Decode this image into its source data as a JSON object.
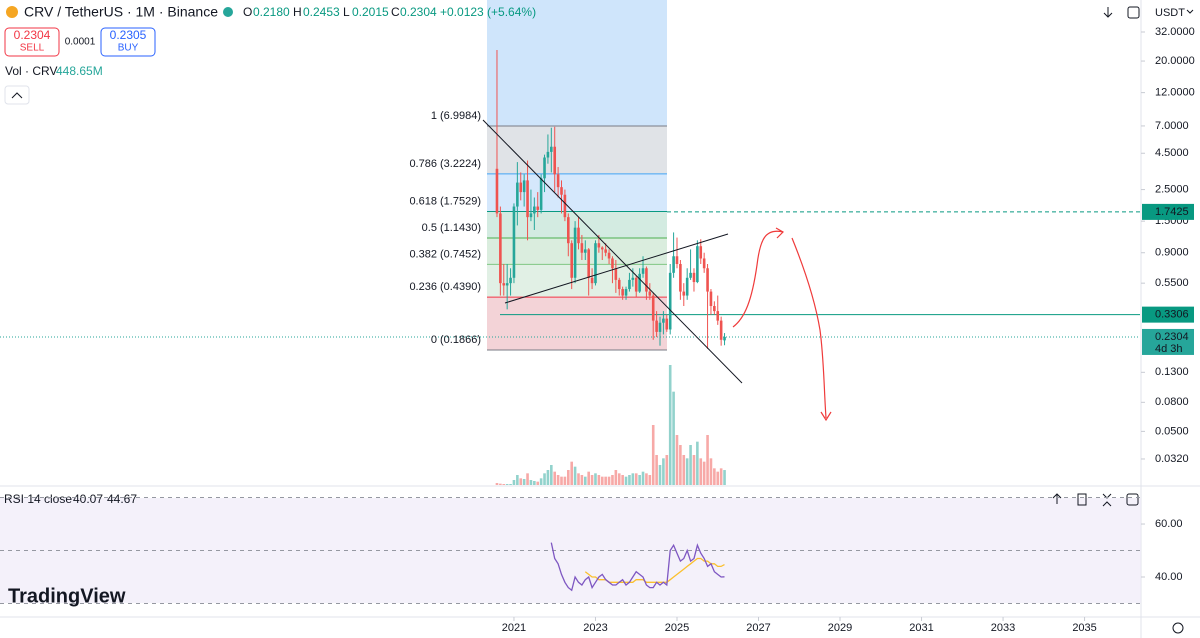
{
  "header": {
    "symbol": "CRV / TetherUS · 1M · Binance",
    "o_label": "O",
    "open": "0.2180",
    "h_label": "H",
    "high": "0.2453",
    "l_label": "L",
    "low": "0.2015",
    "c_label": "C",
    "close": "0.2304",
    "change": "+0.0123 (+5.64%)",
    "sell_price": "0.2304",
    "sell": "SELL",
    "spread": "0.0001",
    "buy_price": "0.2305",
    "buy": "BUY",
    "vol_label": "Vol · CRV",
    "vol_value": "448.65M",
    "currency": "USDT"
  },
  "chart_data": {
    "type": "candlestick",
    "start": "2020-08",
    "log_scale": true,
    "ylim": [
      0.021,
      53.7
    ],
    "yticks": [
      {
        "value": 32,
        "label": "32.0000"
      },
      {
        "value": 20,
        "label": "20.0000"
      },
      {
        "value": 12,
        "label": "12.0000"
      },
      {
        "value": 7,
        "label": "7.0000"
      },
      {
        "value": 4.5,
        "label": "4.5000"
      },
      {
        "value": 2.5,
        "label": "2.5000"
      },
      {
        "value": 1.5,
        "label": "1.5000"
      },
      {
        "value": 0.9,
        "label": "0.9000"
      },
      {
        "value": 0.55,
        "label": "0.5500"
      },
      {
        "value": 0.13,
        "label": "0.1300"
      },
      {
        "value": 0.08,
        "label": "0.0800"
      },
      {
        "value": 0.05,
        "label": "0.0500"
      },
      {
        "value": 0.032,
        "label": "0.0320"
      }
    ],
    "xlim": [
      2008.39,
      2036.36
    ],
    "xticks": [
      2021,
      2023,
      2025,
      2027,
      2029,
      2031,
      2033,
      2035
    ],
    "up_color": "#26a69a",
    "down_color": "#ef5350",
    "candles": [
      [
        3.5,
        23.9,
        1.6,
        1.7
      ],
      [
        1.7,
        1.9,
        0.45,
        0.55
      ],
      [
        0.55,
        0.75,
        0.45,
        0.53
      ],
      [
        0.53,
        0.75,
        0.36,
        0.55
      ],
      [
        0.55,
        0.7,
        0.45,
        0.6
      ],
      [
        0.6,
        2.0,
        0.55,
        1.9
      ],
      [
        1.9,
        3.9,
        1.4,
        2.8
      ],
      [
        2.8,
        3.3,
        2.1,
        2.4
      ],
      [
        2.4,
        3.2,
        1.9,
        2.9
      ],
      [
        2.9,
        4.0,
        1.1,
        1.6
      ],
      [
        1.6,
        2.5,
        1.5,
        1.7
      ],
      [
        1.7,
        2.2,
        1.3,
        1.9
      ],
      [
        1.9,
        2.4,
        1.6,
        1.8
      ],
      [
        1.8,
        3.2,
        1.7,
        3.0
      ],
      [
        3.0,
        4.4,
        2.4,
        4.2
      ],
      [
        4.2,
        6.1,
        3.8,
        4.6
      ],
      [
        4.6,
        6.8,
        3.3,
        5.0
      ],
      [
        5.0,
        6.9,
        2.4,
        3.2
      ],
      [
        3.2,
        3.6,
        2.2,
        2.6
      ],
      [
        2.6,
        2.9,
        1.7,
        2.3
      ],
      [
        2.3,
        2.5,
        1.5,
        1.6
      ],
      [
        1.6,
        1.7,
        0.85,
        1.05
      ],
      [
        1.05,
        1.1,
        0.5,
        0.6
      ],
      [
        0.6,
        1.5,
        0.55,
        1.35
      ],
      [
        1.35,
        1.6,
        0.95,
        1.05
      ],
      [
        1.05,
        1.2,
        0.8,
        0.9
      ],
      [
        0.9,
        1.1,
        0.8,
        0.95
      ],
      [
        0.95,
        0.97,
        0.45,
        0.6
      ],
      [
        0.6,
        0.7,
        0.5,
        0.55
      ],
      [
        0.55,
        1.1,
        0.53,
        1.05
      ],
      [
        1.05,
        1.2,
        0.9,
        0.98
      ],
      [
        0.98,
        1.0,
        0.8,
        0.95
      ],
      [
        0.95,
        1.05,
        0.85,
        0.9
      ],
      [
        0.9,
        0.95,
        0.75,
        0.82
      ],
      [
        0.82,
        0.85,
        0.55,
        0.7
      ],
      [
        0.7,
        0.8,
        0.47,
        0.58
      ],
      [
        0.58,
        0.6,
        0.45,
        0.5
      ],
      [
        0.5,
        0.52,
        0.42,
        0.45
      ],
      [
        0.45,
        0.52,
        0.42,
        0.5
      ],
      [
        0.5,
        0.65,
        0.48,
        0.58
      ],
      [
        0.58,
        0.7,
        0.52,
        0.6
      ],
      [
        0.6,
        0.62,
        0.44,
        0.48
      ],
      [
        0.48,
        0.7,
        0.47,
        0.64
      ],
      [
        0.64,
        0.85,
        0.6,
        0.7
      ],
      [
        0.7,
        0.72,
        0.42,
        0.48
      ],
      [
        0.48,
        0.55,
        0.42,
        0.45
      ],
      [
        0.45,
        0.47,
        0.22,
        0.3
      ],
      [
        0.3,
        0.35,
        0.23,
        0.25
      ],
      [
        0.25,
        0.32,
        0.2,
        0.29
      ],
      [
        0.29,
        0.35,
        0.24,
        0.31
      ],
      [
        0.31,
        0.33,
        0.25,
        0.26
      ],
      [
        0.26,
        0.75,
        0.24,
        0.65
      ],
      [
        0.65,
        1.25,
        0.6,
        0.85
      ],
      [
        0.85,
        1.15,
        0.7,
        0.75
      ],
      [
        0.75,
        0.8,
        0.42,
        0.48
      ],
      [
        0.48,
        0.55,
        0.38,
        0.45
      ],
      [
        0.45,
        0.7,
        0.42,
        0.6
      ],
      [
        0.6,
        0.95,
        0.58,
        0.65
      ],
      [
        0.65,
        0.7,
        0.48,
        0.56
      ],
      [
        0.56,
        1.1,
        0.55,
        1.0
      ],
      [
        1.0,
        1.12,
        0.75,
        0.82
      ],
      [
        0.82,
        0.9,
        0.65,
        0.7
      ],
      [
        0.7,
        0.75,
        0.19,
        0.48
      ],
      [
        0.48,
        0.5,
        0.33,
        0.38
      ],
      [
        0.38,
        0.41,
        0.33,
        0.35
      ],
      [
        0.35,
        0.45,
        0.28,
        0.3
      ],
      [
        0.3,
        0.32,
        0.2,
        0.22
      ],
      [
        0.218,
        0.2453,
        0.2015,
        0.2304
      ]
    ],
    "volume_lim": [
      0,
      14550
    ],
    "volumes": [
      60,
      40,
      30,
      30,
      30,
      150,
      300,
      200,
      180,
      350,
      150,
      120,
      100,
      200,
      350,
      450,
      600,
      400,
      300,
      250,
      250,
      450,
      700,
      550,
      350,
      300,
      250,
      400,
      300,
      350,
      300,
      250,
      250,
      250,
      300,
      450,
      350,
      300,
      250,
      300,
      350,
      350,
      300,
      400,
      350,
      300,
      1800,
      900,
      600,
      800,
      900,
      3600,
      2800,
      1500,
      1200,
      900,
      800,
      1200,
      900,
      1300,
      800,
      700,
      1500,
      800,
      500,
      400,
      500,
      448.65
    ],
    "fib": [
      {
        "label": "1 (6.9984)",
        "price": 6.9984,
        "color": "#787b86",
        "fill": "#e3e3e3"
      },
      {
        "label": "0.786 (3.2224)",
        "price": 3.2224,
        "color": "#42a5f5",
        "fill": "#d6e9fb"
      },
      {
        "label": "0.618 (1.7529)",
        "price": 1.7529,
        "color": "#089981",
        "fill": "#d4ecdc"
      },
      {
        "label": "0.5 (1.1430)",
        "price": 1.143,
        "color": "#4caf50",
        "fill": "#dcefd8"
      },
      {
        "label": "0.382 (0.7452)",
        "price": 0.7452,
        "color": "#81c784",
        "fill": "#e4f2e0"
      },
      {
        "label": "0.236 (0.4390)",
        "price": 0.439,
        "color": "#f23645",
        "fill": "#f9d0d0"
      },
      {
        "label": "0 (0.1866)",
        "price": 0.1866,
        "color": "#787b86",
        "fill": "#f9d0d0"
      }
    ],
    "badges": [
      {
        "value": 1.7425,
        "label": "1.7425",
        "color": "#089981"
      },
      {
        "value": 0.3306,
        "label": "0.3306",
        "color": "#089981"
      },
      {
        "value": 0.2304,
        "label": "0.2304",
        "sub": "4d 3h",
        "color": "#26a69a"
      }
    ]
  },
  "rsi": {
    "label": "RSI 14 close",
    "value": "40.07",
    "ma_value": "44.67",
    "color": "#7e57c2",
    "ma_color": "#fbc02d",
    "ylim": [
      25.66,
      73.6
    ],
    "yticks": [
      {
        "value": 60,
        "label": "60.00"
      },
      {
        "value": 40,
        "label": "40.00"
      }
    ],
    "bands": [
      70,
      50,
      30
    ],
    "values": [
      null,
      null,
      null,
      null,
      null,
      null,
      null,
      null,
      null,
      null,
      null,
      null,
      null,
      null,
      null,
      null,
      53,
      47,
      45,
      41,
      38,
      36,
      35,
      40,
      38,
      37,
      39,
      40,
      36,
      38,
      40,
      41,
      39,
      38,
      37,
      37,
      38,
      39,
      37,
      38,
      40,
      42,
      41,
      40,
      37,
      36,
      36,
      38,
      37,
      38,
      37,
      50,
      52,
      49,
      46,
      47,
      50,
      46,
      47,
      52,
      49,
      47,
      44,
      45,
      42,
      41,
      40,
      40.07
    ],
    "ma": [
      null,
      null,
      null,
      null,
      null,
      null,
      null,
      null,
      null,
      null,
      null,
      null,
      null,
      null,
      null,
      null,
      null,
      null,
      null,
      null,
      null,
      null,
      null,
      null,
      null,
      null,
      42,
      41,
      40,
      40,
      39,
      39,
      39,
      38,
      38,
      38,
      38,
      38,
      38,
      38,
      38,
      39,
      39,
      39,
      38,
      38,
      38,
      38,
      38,
      38,
      38,
      39,
      40,
      41,
      42,
      43,
      44,
      45,
      46,
      47,
      47,
      46,
      46,
      45,
      45,
      44,
      44,
      44.67
    ]
  },
  "brand": "TradingView"
}
